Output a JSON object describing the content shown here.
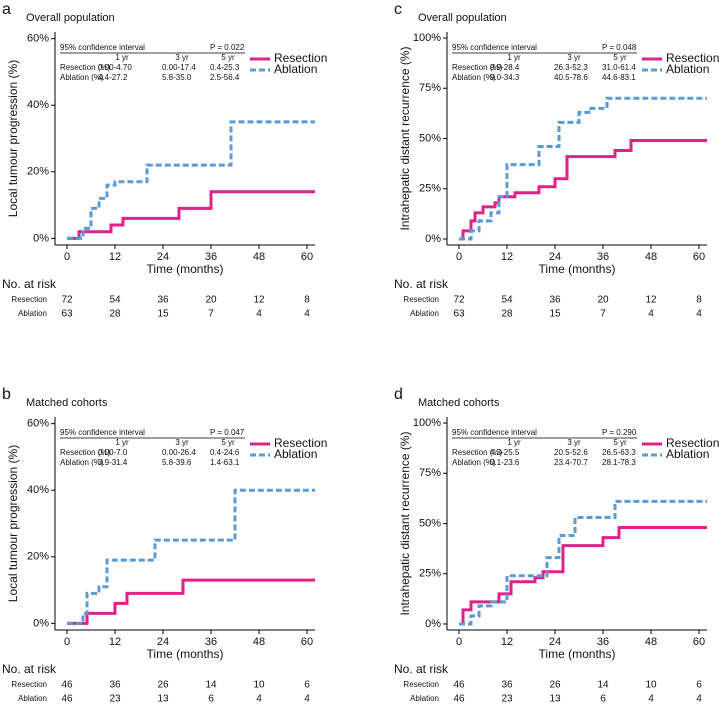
{
  "chart_data": [
    {
      "type": "line",
      "label": "a",
      "subtitle": "Overall population",
      "ylabel": "Local tumour progression (%)",
      "xlabel": "Time (months)",
      "xlim": [
        -3,
        62
      ],
      "xticks": [
        0,
        12,
        24,
        36,
        48,
        60
      ],
      "ylim": [
        -2,
        62
      ],
      "yticks": [
        {
          "value": 0,
          "label": "0%"
        },
        {
          "value": 20,
          "label": "20%"
        },
        {
          "value": 40,
          "label": "40%"
        },
        {
          "value": 60,
          "label": "60%"
        }
      ],
      "series": [
        {
          "name": "Resection",
          "color": "#e0218a",
          "linestyle": "solid",
          "x": [
            0,
            3,
            11,
            14,
            28,
            36,
            62
          ],
          "values": [
            0,
            2,
            4,
            6,
            9,
            14,
            14
          ]
        },
        {
          "name": "Ablation",
          "color": "#5b9bd5",
          "linestyle": "dashed",
          "x": [
            0,
            4,
            6,
            8,
            10,
            12,
            20,
            41,
            62
          ],
          "values": [
            0,
            3,
            9,
            12,
            16,
            17,
            22,
            35,
            35
          ]
        }
      ],
      "ci_table": {
        "title": "95% confidence interval",
        "p_value": "P = 0.022",
        "columns": [
          "1 yr",
          "3 yr",
          "5 yr"
        ],
        "rows": [
          {
            "label": "Resection (%)",
            "cells": [
              "0.00-4.70",
              "0.00-17.4",
              "0.4-25.3"
            ]
          },
          {
            "label": "Ablation (%)",
            "cells": [
              "4.4-27.2",
              "5.8-35.0",
              "2.5-56.4"
            ]
          }
        ]
      },
      "at_risk": {
        "title": "No. at risk",
        "rows": [
          {
            "label": "Resection",
            "values": [
              72,
              54,
              36,
              20,
              12,
              8
            ]
          },
          {
            "label": "Ablation",
            "values": [
              63,
              28,
              15,
              7,
              4,
              4
            ]
          }
        ]
      }
    },
    {
      "type": "line",
      "label": "c",
      "subtitle": "Overall population",
      "ylabel": "Intrahepatic distant recurrence (%)",
      "xlabel": "Time (months)",
      "xlim": [
        -3,
        62
      ],
      "xticks": [
        0,
        12,
        24,
        36,
        48,
        60
      ],
      "ylim": [
        -3,
        103
      ],
      "yticks": [
        {
          "value": 0,
          "label": "0%"
        },
        {
          "value": 25,
          "label": "25%"
        },
        {
          "value": 50,
          "label": "50%"
        },
        {
          "value": 75,
          "label": "75%"
        },
        {
          "value": 100,
          "label": "100%"
        }
      ],
      "series": [
        {
          "name": "Resection",
          "color": "#e0218a",
          "linestyle": "solid",
          "x": [
            0,
            1,
            3,
            4,
            6,
            9,
            10,
            14,
            20,
            24,
            27,
            39,
            43,
            62
          ],
          "values": [
            0,
            4,
            9,
            13,
            16,
            18,
            21,
            23,
            26,
            30,
            41,
            44,
            49,
            49
          ]
        },
        {
          "name": "Ablation",
          "color": "#5b9bd5",
          "linestyle": "dashed",
          "x": [
            0,
            3,
            5,
            8,
            10,
            12,
            20,
            25,
            30,
            33,
            37,
            62
          ],
          "values": [
            0,
            4,
            9,
            13,
            21,
            37,
            46,
            58,
            63,
            65,
            70,
            70
          ]
        }
      ],
      "ci_table": {
        "title": "95% confidence interval",
        "p_value": "P = 0.048",
        "columns": [
          "1 yr",
          "3 yr",
          "5 yr"
        ],
        "rows": [
          {
            "label": "Resection (%)",
            "cells": [
              "9.9-28.4",
              "26.3-52.3",
              "31.0-61.4"
            ]
          },
          {
            "label": "Ablation (%)",
            "cells": [
              "9.0-34.3",
              "40.5-78.6",
              "44.6-83.1"
            ]
          }
        ]
      },
      "at_risk": {
        "title": "No. at risk",
        "rows": [
          {
            "label": "Resection",
            "values": [
              72,
              54,
              36,
              20,
              12,
              8
            ]
          },
          {
            "label": "Ablation",
            "values": [
              63,
              28,
              15,
              7,
              4,
              4
            ]
          }
        ]
      }
    },
    {
      "type": "line",
      "label": "b",
      "subtitle": "Matched cohorts",
      "ylabel": "Local tumour progression (%)",
      "xlabel": "Time (months)",
      "xlim": [
        -3,
        62
      ],
      "xticks": [
        0,
        12,
        24,
        36,
        48,
        60
      ],
      "ylim": [
        -2,
        62
      ],
      "yticks": [
        {
          "value": 0,
          "label": "0%"
        },
        {
          "value": 20,
          "label": "20%"
        },
        {
          "value": 40,
          "label": "40%"
        },
        {
          "value": 60,
          "label": "60%"
        }
      ],
      "series": [
        {
          "name": "Resection",
          "color": "#e0218a",
          "linestyle": "solid",
          "x": [
            0,
            5,
            12,
            15,
            29,
            62
          ],
          "values": [
            0,
            3,
            6,
            9,
            13,
            13
          ]
        },
        {
          "name": "Ablation",
          "color": "#5b9bd5",
          "linestyle": "dashed",
          "x": [
            0,
            4,
            5,
            8,
            10,
            22,
            42,
            62
          ],
          "values": [
            0,
            3,
            9,
            11,
            19,
            25,
            40,
            40
          ]
        }
      ],
      "ci_table": {
        "title": "95% confidence interval",
        "p_value": "P = 0.047",
        "columns": [
          "1 yr",
          "3 yr",
          "5 yr"
        ],
        "rows": [
          {
            "label": "Resection (%)",
            "cells": [
              "0.00-7.0",
              "0.00-26.4",
              "0.4-24.6"
            ]
          },
          {
            "label": "Ablation (%)",
            "cells": [
              "3.9-31.4",
              "5.8-39.6",
              "1.4-63.1"
            ]
          }
        ]
      },
      "at_risk": {
        "title": "No. at risk",
        "rows": [
          {
            "label": "Resection",
            "values": [
              46,
              36,
              26,
              14,
              10,
              6
            ]
          },
          {
            "label": "Ablation",
            "values": [
              46,
              23,
              13,
              6,
              4,
              4
            ]
          }
        ]
      }
    },
    {
      "type": "line",
      "label": "d",
      "subtitle": "Matched cohorts",
      "ylabel": "Intrahepatic distant recurrence (%)",
      "xlabel": "Time (months)",
      "xlim": [
        -3,
        62
      ],
      "xticks": [
        0,
        12,
        24,
        36,
        48,
        60
      ],
      "ylim": [
        -3,
        103
      ],
      "yticks": [
        {
          "value": 0,
          "label": "0%"
        },
        {
          "value": 25,
          "label": "25%"
        },
        {
          "value": 50,
          "label": "50%"
        },
        {
          "value": 75,
          "label": "75%"
        },
        {
          "value": 100,
          "label": "100%"
        }
      ],
      "series": [
        {
          "name": "Resection",
          "color": "#e0218a",
          "linestyle": "solid",
          "x": [
            0,
            1,
            3,
            10,
            13,
            19,
            21,
            26,
            36,
            40,
            62
          ],
          "values": [
            0,
            7,
            11,
            15,
            21,
            23,
            26,
            39,
            43,
            48,
            48
          ]
        },
        {
          "name": "Ablation",
          "color": "#5b9bd5",
          "linestyle": "dashed",
          "x": [
            0,
            3,
            5,
            8,
            12,
            22,
            25,
            29,
            39,
            62
          ],
          "values": [
            0,
            4,
            9,
            11,
            24,
            33,
            44,
            53,
            61,
            61
          ]
        }
      ],
      "ci_table": {
        "title": "95% confidence interval",
        "p_value": "P = 0.290",
        "columns": [
          "1 yr",
          "3 yr",
          "5 yr"
        ],
        "rows": [
          {
            "label": "Resection (%)",
            "cells": [
              "4.3-25.5",
              "20.5-52.6",
              "26.5-63.3"
            ]
          },
          {
            "label": "Ablation (%)",
            "cells": [
              "0.1-23.6",
              "23.4-70.7",
              "28.1-78.3"
            ]
          }
        ]
      },
      "at_risk": {
        "title": "No. at risk",
        "rows": [
          {
            "label": "Resection",
            "values": [
              46,
              36,
              26,
              14,
              10,
              6
            ]
          },
          {
            "label": "Ablation",
            "values": [
              46,
              23,
              13,
              6,
              4,
              4
            ]
          }
        ]
      }
    }
  ]
}
